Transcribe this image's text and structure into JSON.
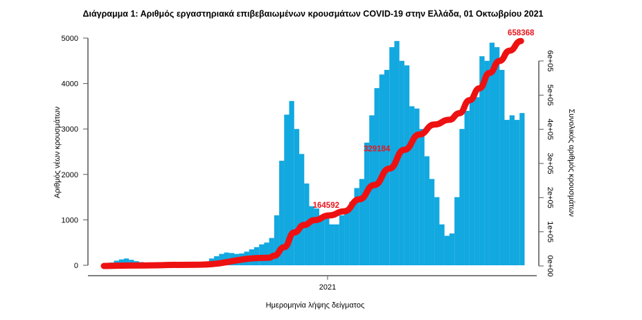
{
  "chart_data": {
    "type": "bar",
    "title": "Διάγραμμα 1: Αριθμός εργαστηριακά επιβεβαιωμένων κρουσμάτων COVID-19 στην Ελλάδα, 01 Οκτωβρίου 2021",
    "xlabel": "Ημερομηνία λήψης δείγματος",
    "ylabel": "Αριθμός νέων κρουσμάτων",
    "y2label": "Συνολικός αριθμός κρουσμάτων",
    "x_ticks": [
      "2021"
    ],
    "y_ticks": [
      "0",
      "1000",
      "2000",
      "3000",
      "4000",
      "5000"
    ],
    "y2_ticks": [
      "0e+00",
      "1e+05",
      "2e+05",
      "3e+05",
      "4e+05",
      "5e+05",
      "6e+05"
    ],
    "ylim": [
      0,
      5000
    ],
    "y2lim": [
      0,
      600000
    ],
    "grid": false,
    "colors": {
      "bars": "#12a8e0",
      "cumulative": "#ee1111",
      "annotation": "#e8141b"
    },
    "series": [
      {
        "type": "bar",
        "x": [
          "2020-02-26",
          "2020-03-04",
          "2020-03-11",
          "2020-03-18",
          "2020-03-25",
          "2020-04-01",
          "2020-04-08",
          "2020-04-15",
          "2020-04-22",
          "2020-04-29",
          "2020-05-06",
          "2020-05-13",
          "2020-05-20",
          "2020-05-27",
          "2020-06-03",
          "2020-06-10",
          "2020-06-17",
          "2020-06-24",
          "2020-07-01",
          "2020-07-08",
          "2020-07-15",
          "2020-07-22",
          "2020-07-29",
          "2020-08-05",
          "2020-08-12",
          "2020-08-19",
          "2020-08-26",
          "2020-09-02",
          "2020-09-09",
          "2020-09-16",
          "2020-09-23",
          "2020-09-30",
          "2020-10-07",
          "2020-10-14",
          "2020-10-21",
          "2020-10-28",
          "2020-11-04",
          "2020-11-11",
          "2020-11-18",
          "2020-11-25",
          "2020-12-02",
          "2020-12-09",
          "2020-12-16",
          "2020-12-23",
          "2020-12-30",
          "2021-01-06",
          "2021-01-13",
          "2021-01-20",
          "2021-01-27",
          "2021-02-03",
          "2021-02-10",
          "2021-02-17",
          "2021-02-24",
          "2021-03-03",
          "2021-03-10",
          "2021-03-17",
          "2021-03-24",
          "2021-03-31",
          "2021-04-07",
          "2021-04-14",
          "2021-04-21",
          "2021-04-28",
          "2021-05-05",
          "2021-05-12",
          "2021-05-19",
          "2021-05-26",
          "2021-06-02",
          "2021-06-09",
          "2021-06-16",
          "2021-06-23",
          "2021-06-30",
          "2021-07-07",
          "2021-07-14",
          "2021-07-21",
          "2021-07-28",
          "2021-08-04",
          "2021-08-11",
          "2021-08-18",
          "2021-08-25",
          "2021-09-01",
          "2021-09-08",
          "2021-09-15",
          "2021-09-22",
          "2021-09-29"
        ],
        "values": [
          20,
          60,
          100,
          130,
          150,
          120,
          90,
          70,
          40,
          30,
          20,
          20,
          25,
          20,
          25,
          30,
          40,
          40,
          50,
          60,
          80,
          150,
          200,
          250,
          280,
          270,
          250,
          260,
          300,
          350,
          400,
          460,
          500,
          600,
          1100,
          2300,
          3316,
          3616,
          3000,
          2450,
          1800,
          1300,
          1250,
          1100,
          1100,
          900,
          900,
          1100,
          1200,
          1400,
          1700,
          1900,
          2700,
          3300,
          3900,
          4200,
          4300,
          4800,
          4936,
          4500,
          4400,
          3500,
          3450,
          3000,
          2400,
          1900,
          1500,
          900,
          650,
          700,
          1500,
          3000,
          3400,
          3700,
          3700,
          4600,
          4500,
          4900,
          4800,
          4300,
          3200,
          3300,
          3200,
          3350
        ]
      },
      {
        "type": "line",
        "axis": "right",
        "x": [
          "2020-02-26",
          "2020-04-01",
          "2020-07-01",
          "2020-10-14",
          "2020-10-21",
          "2020-11-04",
          "2020-11-18",
          "2020-12-02",
          "2020-12-16",
          "2021-01-06",
          "2021-01-27",
          "2021-02-17",
          "2021-03-10",
          "2021-03-31",
          "2021-04-21",
          "2021-05-12",
          "2021-06-02",
          "2021-06-23",
          "2021-07-07",
          "2021-07-21",
          "2021-08-04",
          "2021-08-18",
          "2021-09-01",
          "2021-09-15",
          "2021-10-01"
        ],
        "values": [
          0,
          1300,
          3500,
          24000,
          30000,
          55000,
          98000,
          120000,
          134000,
          148000,
          160000,
          195000,
          237000,
          285000,
          340000,
          385000,
          414000,
          428000,
          447000,
          485000,
          520000,
          565000,
          600000,
          630000,
          658368
        ]
      }
    ],
    "annotations": [
      {
        "text": "164592",
        "x": "2021-01-24",
        "y": 164592
      },
      {
        "text": "329184",
        "x": "2021-04-05",
        "y": 329184
      },
      {
        "text": "658368",
        "x": "2021-10-01",
        "y": 658368
      }
    ]
  }
}
